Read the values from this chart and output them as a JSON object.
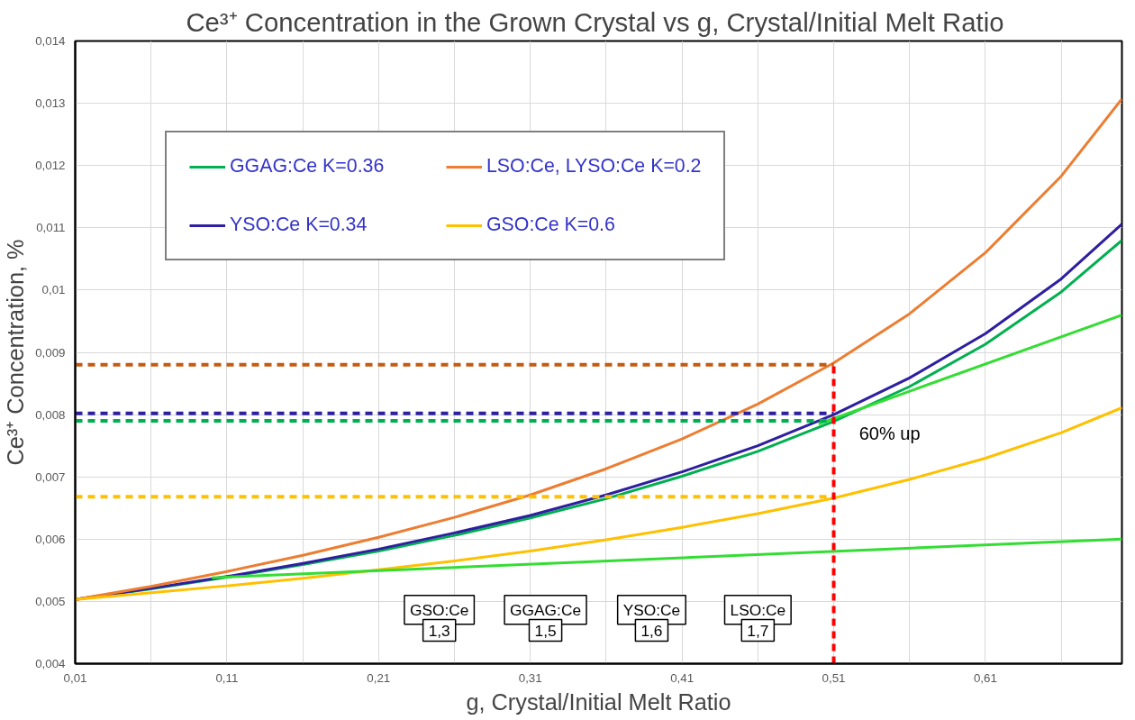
{
  "chart_data": {
    "type": "line",
    "title": "Ce³⁺ Concentration in the Grown Crystal vs g, Crystal/Initial  Melt Ratio",
    "xlabel": "g, Crystal/Initial Melt Ratio",
    "ylabel": "Ce³⁺ Concentration, %",
    "x": [
      0.01,
      0.06,
      0.11,
      0.16,
      0.21,
      0.26,
      0.31,
      0.36,
      0.41,
      0.46,
      0.51,
      0.56,
      0.61,
      0.66,
      0.7
    ],
    "series": [
      {
        "name": "GGAG:Ce K=0.36",
        "color": "#00b050",
        "values": [
          0.00503,
          0.0052,
          0.00539,
          0.00559,
          0.00581,
          0.00606,
          0.00634,
          0.00665,
          0.00701,
          0.00741,
          0.00789,
          0.00845,
          0.00913,
          0.00997,
          0.0108
        ]
      },
      {
        "name": "YSO:Ce K=0.34",
        "color": "#2e1fa0",
        "values": [
          0.00503,
          0.00521,
          0.0054,
          0.00561,
          0.00584,
          0.0061,
          0.00638,
          0.00671,
          0.00708,
          0.0075,
          0.008,
          0.00859,
          0.0093,
          0.01018,
          0.01106
        ]
      },
      {
        "name": "LSO:Ce, LYSO:Ce K=0.2",
        "color": "#ed7d31",
        "values": [
          0.00503,
          0.00524,
          0.00548,
          0.00574,
          0.00603,
          0.00635,
          0.00671,
          0.00713,
          0.00761,
          0.00817,
          0.00883,
          0.00962,
          0.0106,
          0.01183,
          0.01307
        ]
      },
      {
        "name": "GSO:Ce K=0.6",
        "color": "#ffc000",
        "values": [
          0.00503,
          0.00514,
          0.00525,
          0.00537,
          0.00551,
          0.00565,
          0.00581,
          0.00599,
          0.00619,
          0.00641,
          0.00666,
          0.00696,
          0.0073,
          0.00771,
          0.00811
        ]
      },
      {
        "color": "#33dd33",
        "x": [
          0.1,
          0.7
        ],
        "values": [
          0.00538,
          0.006
        ]
      },
      {
        "color": "#33dd33",
        "x": [
          0.5,
          0.7
        ],
        "values": [
          0.00785,
          0.0096
        ]
      },
      {
        "color": "#c55a11",
        "x": [
          0.01,
          0.51
        ],
        "values": [
          0.0088,
          0.0088
        ],
        "line_style": "dashed"
      },
      {
        "color": "#2e1fa0",
        "x": [
          0.01,
          0.51
        ],
        "values": [
          0.00802,
          0.00802
        ],
        "line_style": "dashed"
      },
      {
        "color": "#00b050",
        "x": [
          0.01,
          0.51
        ],
        "values": [
          0.0079,
          0.0079
        ],
        "line_style": "dashed"
      },
      {
        "color": "#ffc000",
        "x": [
          0.01,
          0.51
        ],
        "values": [
          0.00668,
          0.00668
        ],
        "line_style": "dashed"
      },
      {
        "color": "#ff0000",
        "x": [
          0.51,
          0.51
        ],
        "values": [
          0.004,
          0.0088
        ],
        "line_style": "dashed"
      }
    ],
    "annotations": [
      {
        "text": "60% up",
        "x": 0.5,
        "y": 0.00785
      },
      "GSO:Ce",
      "GGAG:Ce",
      "YSO:Ce",
      "LSO:Ce",
      "1,3",
      "1,5",
      "1,6",
      "1,7"
    ],
    "xlim": [
      0.01,
      0.7
    ],
    "ylim": [
      0.004,
      0.014
    ],
    "xticks": [
      {
        "value": 0.01,
        "label": "0,01"
      },
      {
        "value": 0.06,
        "label": null
      },
      {
        "value": 0.11,
        "label": "0,11"
      },
      {
        "value": 0.16,
        "label": null
      },
      {
        "value": 0.21,
        "label": "0,21"
      },
      {
        "value": 0.26,
        "label": null
      },
      {
        "value": 0.31,
        "label": "0,31"
      },
      {
        "value": 0.36,
        "label": null
      },
      {
        "value": 0.41,
        "label": "0,41"
      },
      {
        "value": 0.46,
        "label": null
      },
      {
        "value": 0.51,
        "label": "0,51"
      },
      {
        "value": 0.56,
        "label": null
      },
      {
        "value": 0.61,
        "label": "0,61"
      },
      {
        "value": 0.66,
        "label": null
      }
    ],
    "yticks": [
      {
        "value": 0.004,
        "label": "0,004"
      },
      {
        "value": 0.005,
        "label": "0,005"
      },
      {
        "value": 0.006,
        "label": "0,006"
      },
      {
        "value": 0.007,
        "label": "0,007"
      },
      {
        "value": 0.008,
        "label": "0,008"
      },
      {
        "value": 0.009,
        "label": "0,009"
      },
      {
        "value": 0.01,
        "label": "0,01"
      },
      {
        "value": 0.011,
        "label": "0,011"
      },
      {
        "value": 0.012,
        "label": "0,012"
      },
      {
        "value": 0.013,
        "label": "0,013"
      },
      {
        "value": 0.014,
        "label": "0,014"
      }
    ],
    "grid": true,
    "legend": "top left",
    "marker": "none",
    "line_style": "solid"
  }
}
